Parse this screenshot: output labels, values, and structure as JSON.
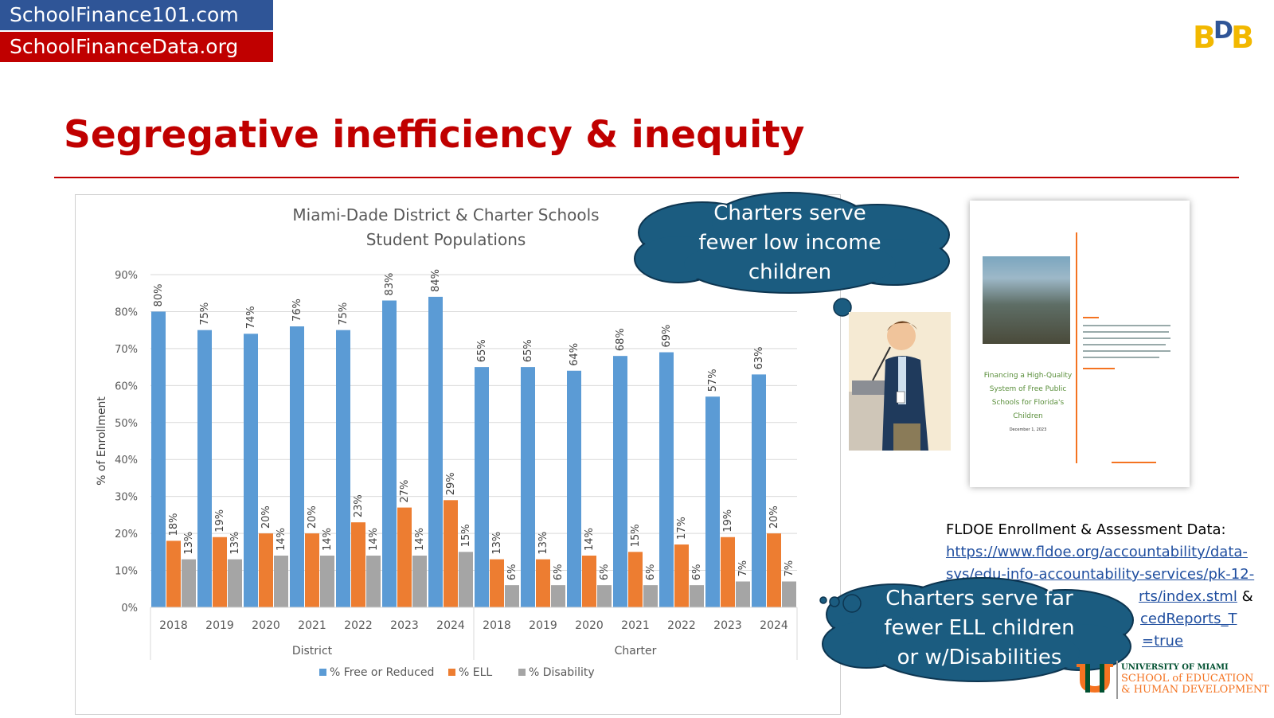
{
  "header": {
    "site1": "SchoolFinance101.com",
    "site2": "SchoolFinanceData.org",
    "slide_title": "Segregative inefficiency & inequity"
  },
  "chart_data": {
    "type": "bar",
    "title_line1": "Miami-Dade District & Charter Schools",
    "title_line2": "Student Populations",
    "ylabel": "% of Enrollment",
    "ylim": [
      0,
      90
    ],
    "yticks": [
      "0%",
      "10%",
      "20%",
      "30%",
      "40%",
      "50%",
      "60%",
      "70%",
      "80%",
      "90%"
    ],
    "groups": [
      {
        "label": "District",
        "years": [
          "2018",
          "2019",
          "2020",
          "2021",
          "2022",
          "2023",
          "2024"
        ]
      },
      {
        "label": "Charter",
        "years": [
          "2018",
          "2019",
          "2020",
          "2021",
          "2022",
          "2023",
          "2024"
        ]
      }
    ],
    "series": [
      {
        "name": "% Free or Reduced",
        "color": "#5b9bd5",
        "values": [
          80,
          75,
          74,
          76,
          75,
          83,
          84,
          65,
          65,
          64,
          68,
          69,
          57,
          63
        ],
        "labels": [
          "80%",
          "75%",
          "74%",
          "76%",
          "75%",
          "83%",
          "84%",
          "65%",
          "65%",
          "64%",
          "68%",
          "69%",
          "57%",
          "63%"
        ]
      },
      {
        "name": "% ELL",
        "color": "#ed7d31",
        "values": [
          18,
          19,
          20,
          20,
          23,
          27,
          29,
          13,
          13,
          14,
          15,
          17,
          19,
          20
        ],
        "labels": [
          "18%",
          "19%",
          "20%",
          "20%",
          "23%",
          "27%",
          "29%",
          "13%",
          "13%",
          "14%",
          "15%",
          "17%",
          "19%",
          "20%"
        ]
      },
      {
        "name": "% Disability",
        "color": "#a5a5a5",
        "values": [
          13,
          13,
          14,
          14,
          14,
          14,
          15,
          6,
          6,
          6,
          6,
          6,
          7,
          7
        ],
        "labels": [
          "13%",
          "13%",
          "14%",
          "14%",
          "14%",
          "14%",
          "15%",
          "6%",
          "6%",
          "6%",
          "6%",
          "6%",
          "7%",
          "7%"
        ]
      }
    ],
    "grid": true,
    "legend": "bottom"
  },
  "callouts": {
    "top": [
      "Charters serve",
      "fewer low income",
      "children"
    ],
    "bottom": [
      "Charters serve far",
      "fewer ELL children",
      "or w/Disabilities"
    ]
  },
  "report": {
    "title_lines": [
      "Financing a High-Quality",
      "System of Free Public",
      "Schools for Florida's",
      "Children"
    ],
    "date": "December 1, 2023"
  },
  "source": {
    "heading": "FLDOE Enrollment & Assessment Data:",
    "line1": "https://www.fldoe.org/accountability/data-",
    "line2": "sys/edu-info-accountability-services/pk-12-",
    "line3_link": "rts/index.stml",
    "line3_tail": " &",
    "line4_link": "cedReports_T",
    "line5_link": "=true"
  },
  "university": {
    "line1": "UNIVERSITY OF MIAMI",
    "line2": "SCHOOL of EDUCATION",
    "line3": "& HUMAN DEVELOPMENT"
  },
  "colors": {
    "brand_blue": "#2f5597",
    "brand_red": "#c00000",
    "cloud": "#1b5c80"
  }
}
